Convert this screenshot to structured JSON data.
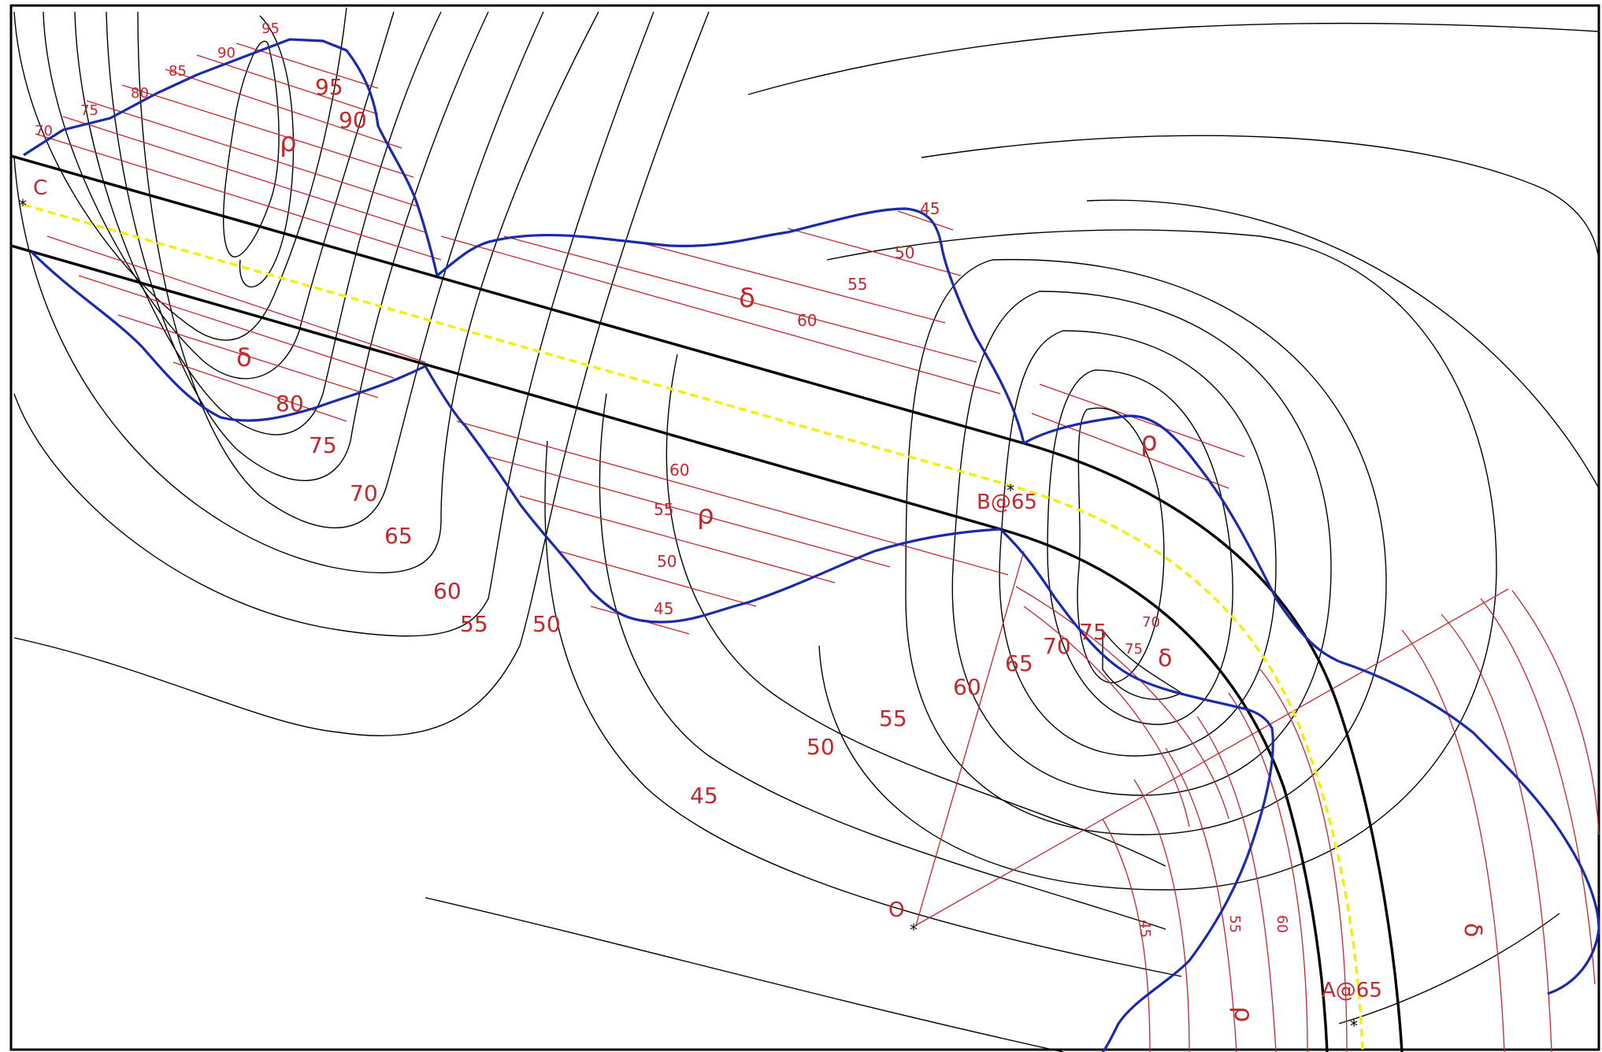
{
  "colors": {
    "contour": "#000000",
    "construction": "#c0282d",
    "boundary": "#1a2aa8",
    "centerline": "#f2ee10",
    "road_edge": "#000000",
    "background": "#ffffff"
  },
  "points": {
    "C": "C",
    "B": "B@65",
    "A": "A@65",
    "O": "O"
  },
  "upper_left_fill": {
    "symbol": "ρ",
    "labels": [
      "70",
      "75",
      "80",
      "85",
      "90",
      "95",
      "95",
      "90"
    ]
  },
  "lower_left_fill": {
    "symbol": "δ",
    "labels": [
      "80",
      "75",
      "70",
      "65",
      "60",
      "55",
      "50"
    ]
  },
  "upper_mid_fill": {
    "symbol": "δ",
    "labels": [
      "45",
      "50",
      "55",
      "60"
    ]
  },
  "lower_mid_fill": {
    "symbol": "ρ",
    "labels": [
      "60",
      "55",
      "50",
      "45"
    ]
  },
  "hill_right": {
    "symbol": "ρ",
    "labels": [
      "60",
      "65",
      "70",
      "75",
      "75",
      "70"
    ],
    "symbol2": "δ"
  },
  "lower_contour_labels": [
    "55",
    "50",
    "45"
  ],
  "curve_fill": {
    "labels": [
      "45",
      "55",
      "60"
    ],
    "symbol_a": "ρ",
    "symbol_b": "δ"
  }
}
